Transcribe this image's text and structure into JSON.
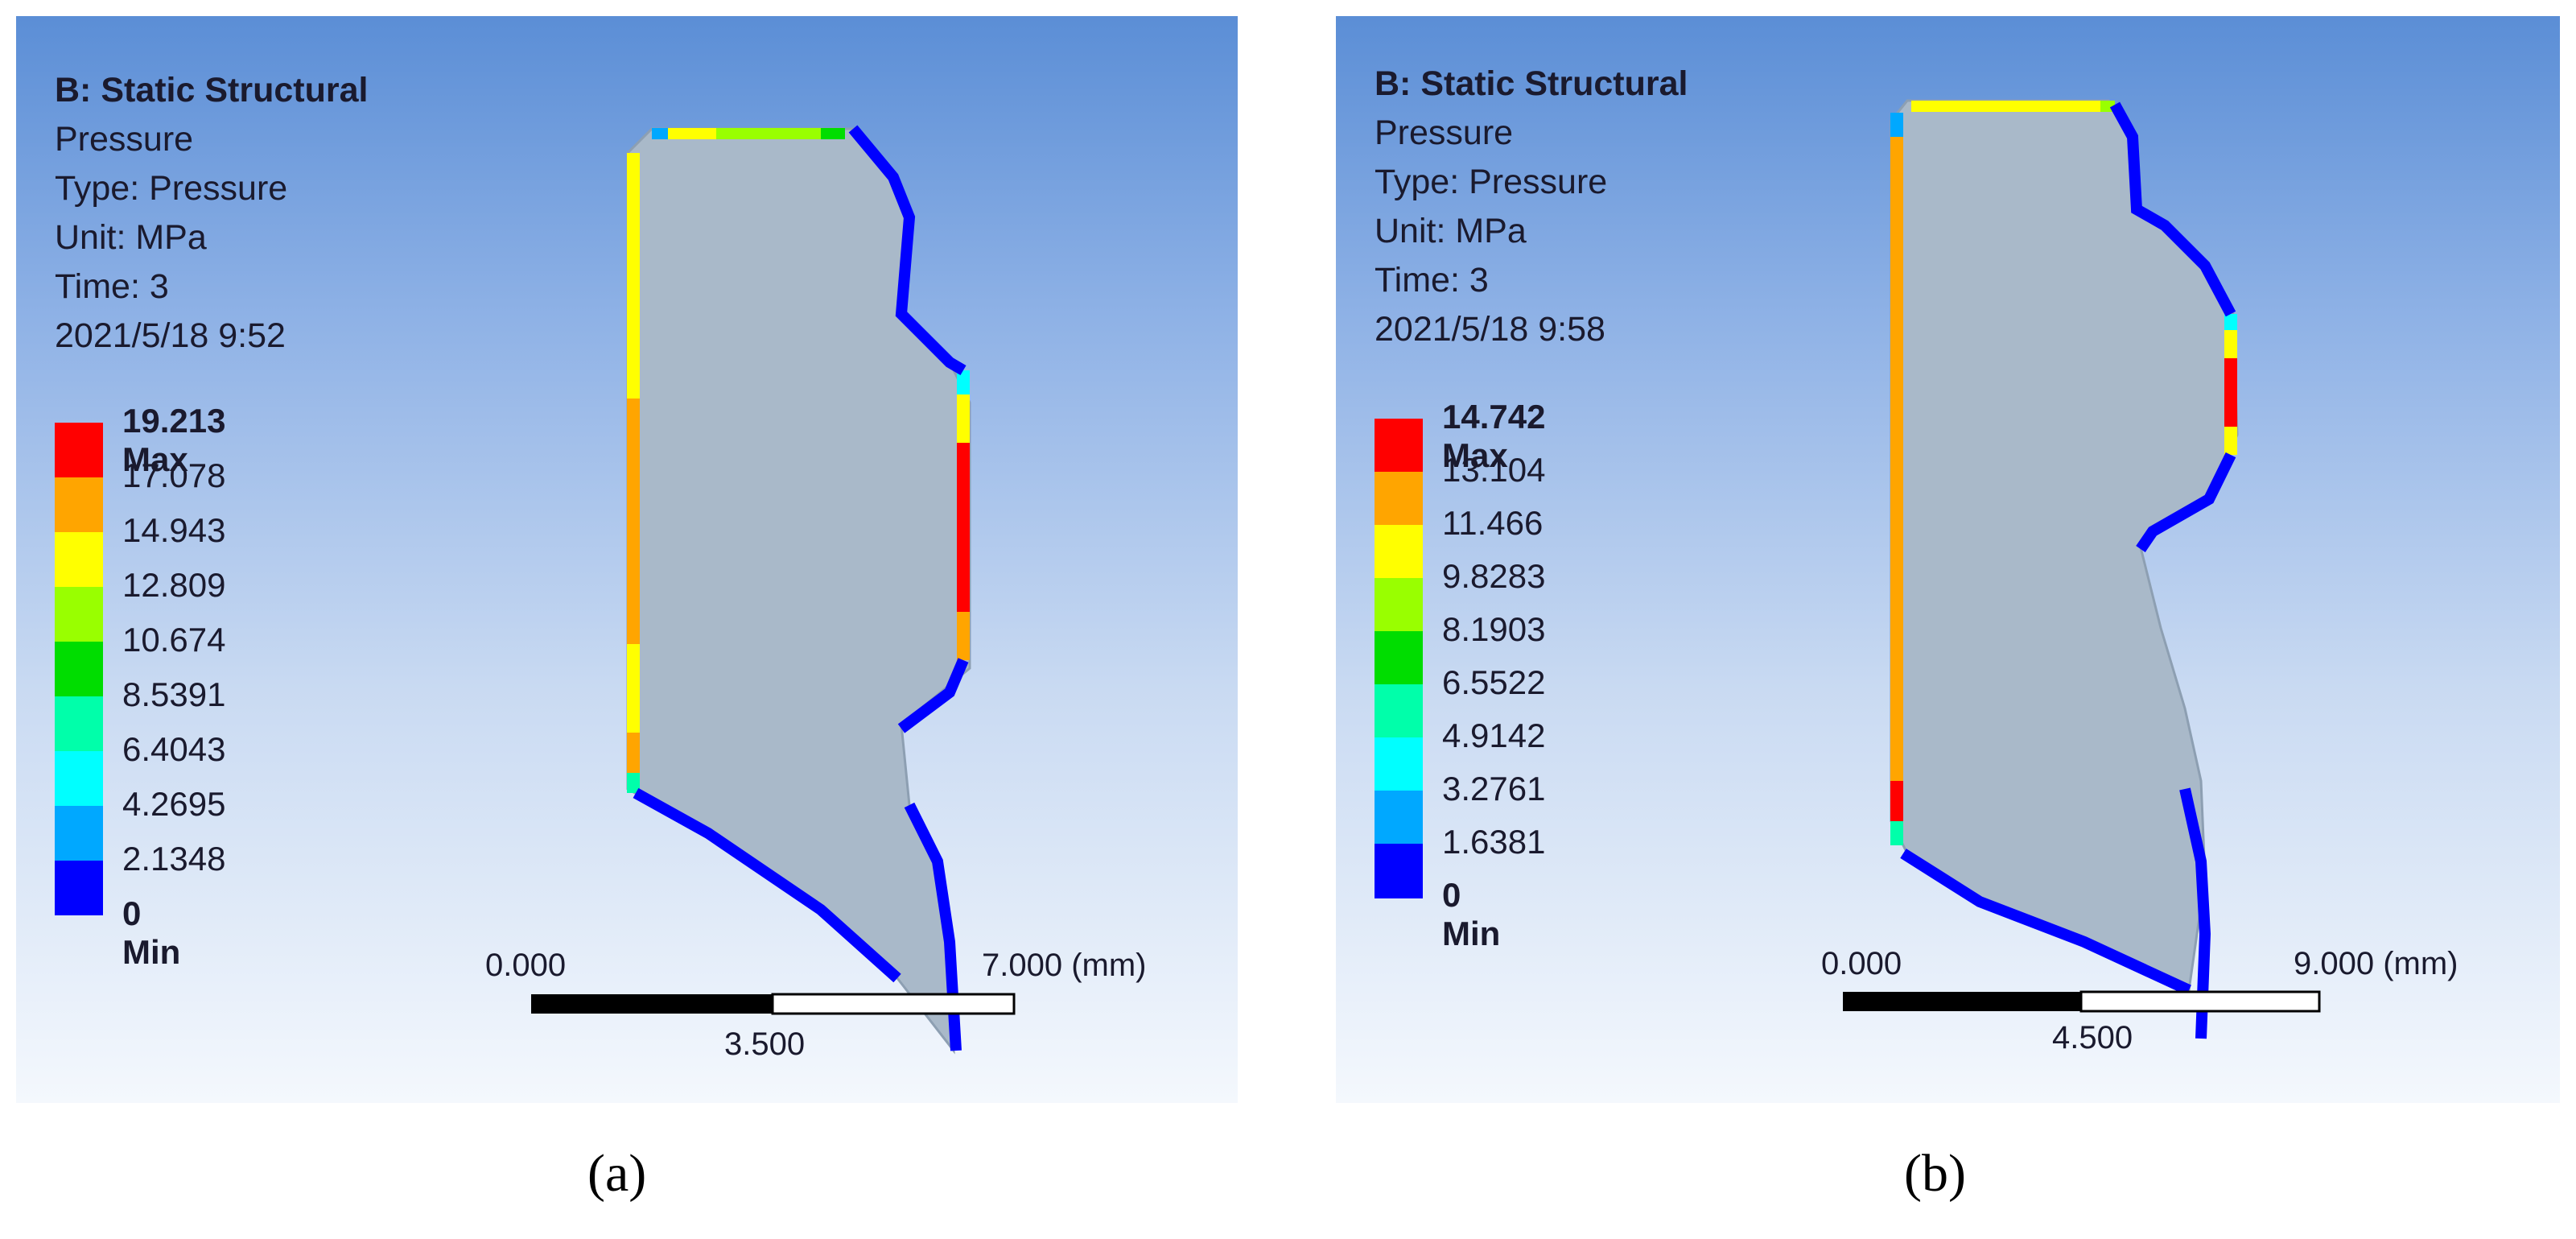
{
  "panels": [
    {
      "id": "a",
      "caption": "(a)",
      "analysis_title": "B: Static Structural",
      "result": "Pressure",
      "type_line": "Type: Pressure",
      "unit_line": "Unit: MPa",
      "time_line": "Time: 3",
      "timestamp": "2021/5/18 9:52",
      "legend_labels": [
        "19.213 Max",
        "17.078",
        "14.943",
        "12.809",
        "10.674",
        "8.5391",
        "6.4043",
        "4.2695",
        "2.1348",
        "0 Min"
      ],
      "scale": {
        "left": "0.000",
        "mid": "3.500",
        "right": "7.000 (mm)"
      }
    },
    {
      "id": "b",
      "caption": "(b)",
      "analysis_title": "B: Static Structural",
      "result": "Pressure",
      "type_line": "Type: Pressure",
      "unit_line": "Unit: MPa",
      "time_line": "Time: 3",
      "timestamp": "2021/5/18 9:58",
      "legend_labels": [
        "14.742 Max",
        "13.104",
        "11.466",
        "9.8283",
        "8.1903",
        "6.5522",
        "4.9142",
        "3.2761",
        "1.6381",
        "0 Min"
      ],
      "scale": {
        "left": "0.000",
        "mid": "4.500",
        "right": "9.000 (mm)"
      }
    }
  ],
  "legend_colors": [
    "#ff0000",
    "#ffa500",
    "#ffff00",
    "#99ff00",
    "#00dd00",
    "#00ffaa",
    "#00ffff",
    "#00a8ff",
    "#0000ff"
  ]
}
